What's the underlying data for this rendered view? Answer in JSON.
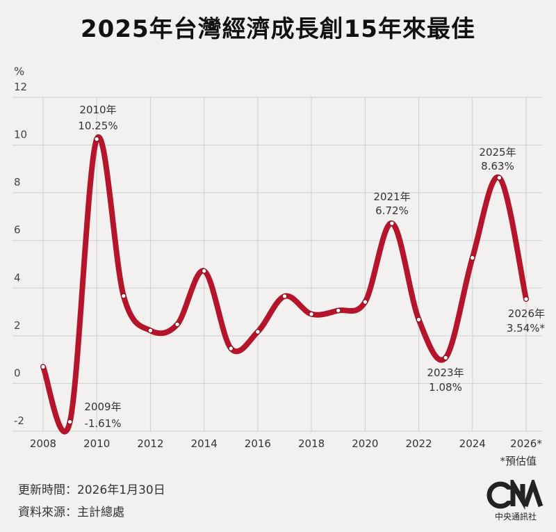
{
  "title": "2025年台灣經濟成長創15年來最佳",
  "chart_data": {
    "type": "line",
    "title": "2025年台灣經濟成長創15年來最佳",
    "ylabel": "%",
    "ylim": [
      -2,
      12
    ],
    "yticks": [
      -2,
      0,
      2,
      4,
      6,
      8,
      10,
      12
    ],
    "xlim": [
      2008,
      2026
    ],
    "xticks": [
      "2008",
      "2010",
      "2012",
      "2014",
      "2016",
      "2018",
      "2020",
      "2022",
      "2024",
      "2026*"
    ],
    "grid": true,
    "line_color": "#b5152b",
    "series": [
      {
        "x": [
          2008,
          2009,
          2010,
          2011,
          2012,
          2013,
          2014,
          2015,
          2016,
          2017,
          2018,
          2019,
          2020,
          2021,
          2022,
          2023,
          2024,
          2025,
          2026
        ],
        "y": [
          0.7,
          -1.61,
          10.25,
          3.67,
          2.22,
          2.48,
          4.72,
          1.47,
          2.17,
          3.66,
          2.91,
          3.06,
          3.42,
          6.72,
          2.68,
          1.08,
          5.27,
          8.63,
          3.54
        ]
      }
    ],
    "annotations": [
      {
        "year": "2009年",
        "value": "-1.61%"
      },
      {
        "year": "2010年",
        "value": "10.25%"
      },
      {
        "year": "2021年",
        "value": "6.72%"
      },
      {
        "year": "2023年",
        "value": "1.08%"
      },
      {
        "year": "2025年",
        "value": "8.63%"
      },
      {
        "year": "2026年",
        "value": "3.54%*"
      }
    ]
  },
  "note": "*預估值",
  "footer": {
    "updated": "更新時間：2026年1月30日",
    "source": "資料來源：主計總處"
  },
  "logo": {
    "mark": "CNA",
    "name": "中央通訊社"
  }
}
